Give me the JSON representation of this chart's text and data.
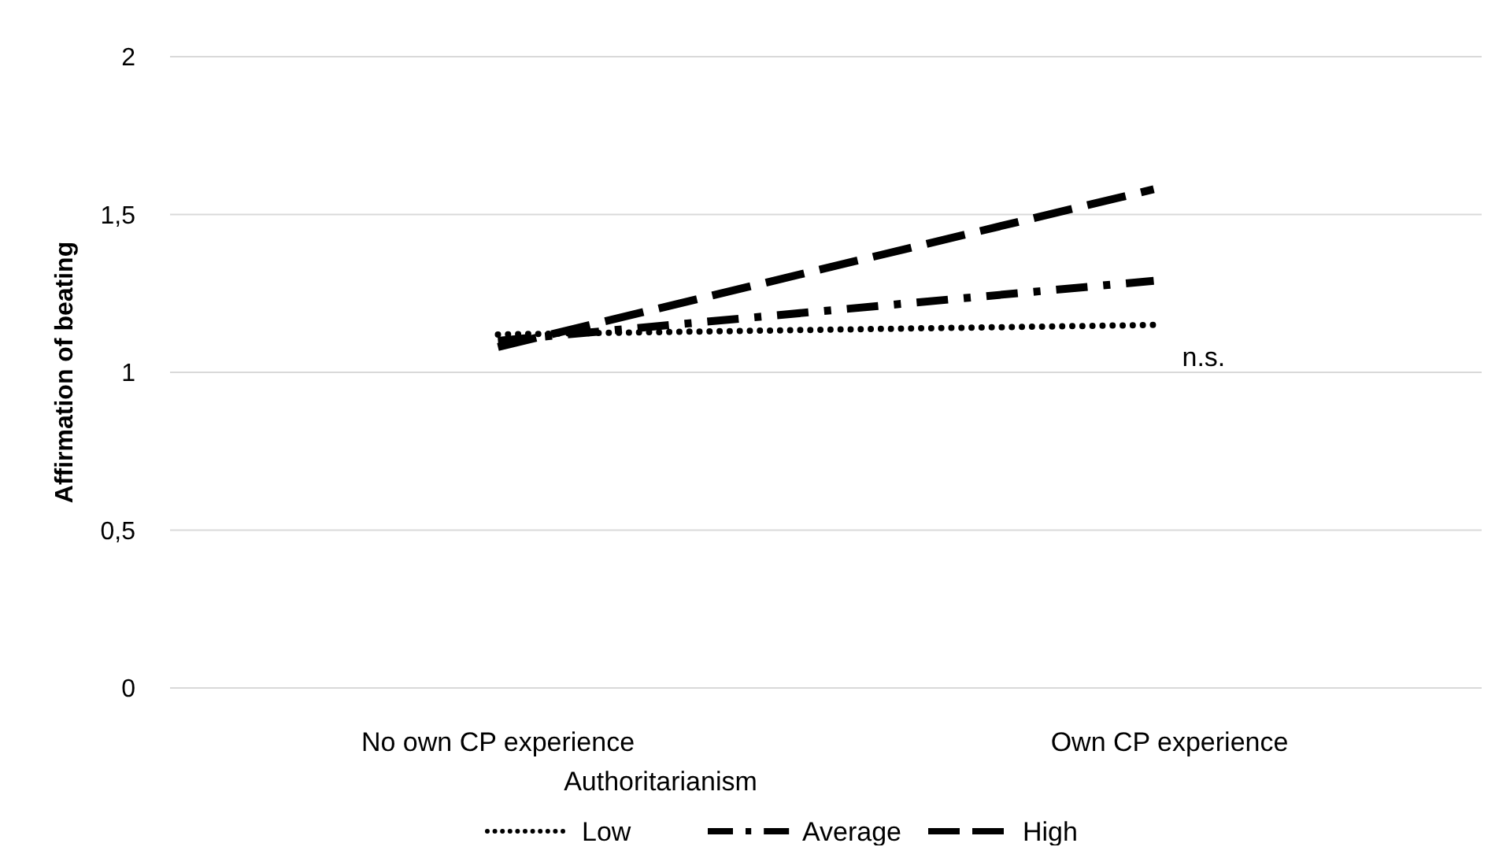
{
  "chart_data": {
    "type": "line",
    "ylabel": "Affirmation of beating",
    "xlabel": "Authoritarianism",
    "categories": [
      "No own CP experience",
      "Own CP experience"
    ],
    "series": [
      {
        "name": "Low",
        "color": "#000000",
        "line_style": "dotted",
        "values": [
          1.12,
          1.15
        ]
      },
      {
        "name": "Average",
        "color": "#000000",
        "line_style": "dashdot",
        "values": [
          1.1,
          1.29
        ]
      },
      {
        "name": "High",
        "color": "#000000",
        "line_style": "dashed",
        "values": [
          1.08,
          1.58
        ]
      }
    ],
    "ylim": [
      0,
      2
    ],
    "yticks": [
      0,
      {
        "value": 0.5,
        "label": "0,5"
      },
      1,
      {
        "value": 1.5,
        "label": "1,5"
      },
      2
    ],
    "grid": "y",
    "legend": "bottom",
    "annotations": [
      "n.s."
    ]
  }
}
